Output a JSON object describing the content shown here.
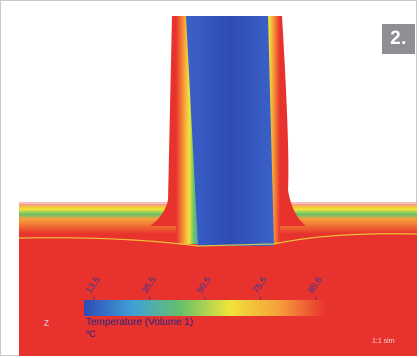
{
  "badge": "2.",
  "chart_data": {
    "type": "heatmap",
    "title": "",
    "colorbar": {
      "label": "Temperature (Volume 1)",
      "unit": "ºC",
      "min": 15,
      "max": 87,
      "tick_labels": [
        "13.5",
        "35.5",
        "50.5",
        "75.5",
        "85.6"
      ],
      "colors": [
        "#2f4bb5",
        "#3fa0d8",
        "#66c06a",
        "#f0e43a",
        "#f7a23a",
        "#e8322d"
      ]
    },
    "fields": [
      {
        "region": "horizontal-pipe",
        "level": "hot",
        "color": "#e8322d"
      },
      {
        "region": "vertical-branch-core",
        "level": "cold",
        "color": "#2f4bb5"
      },
      {
        "region": "branch-wall-boundary",
        "level": "intermediate",
        "color": "#66c06a"
      }
    ]
  },
  "corner_mark": "Z",
  "watermark": "1:1 sim"
}
